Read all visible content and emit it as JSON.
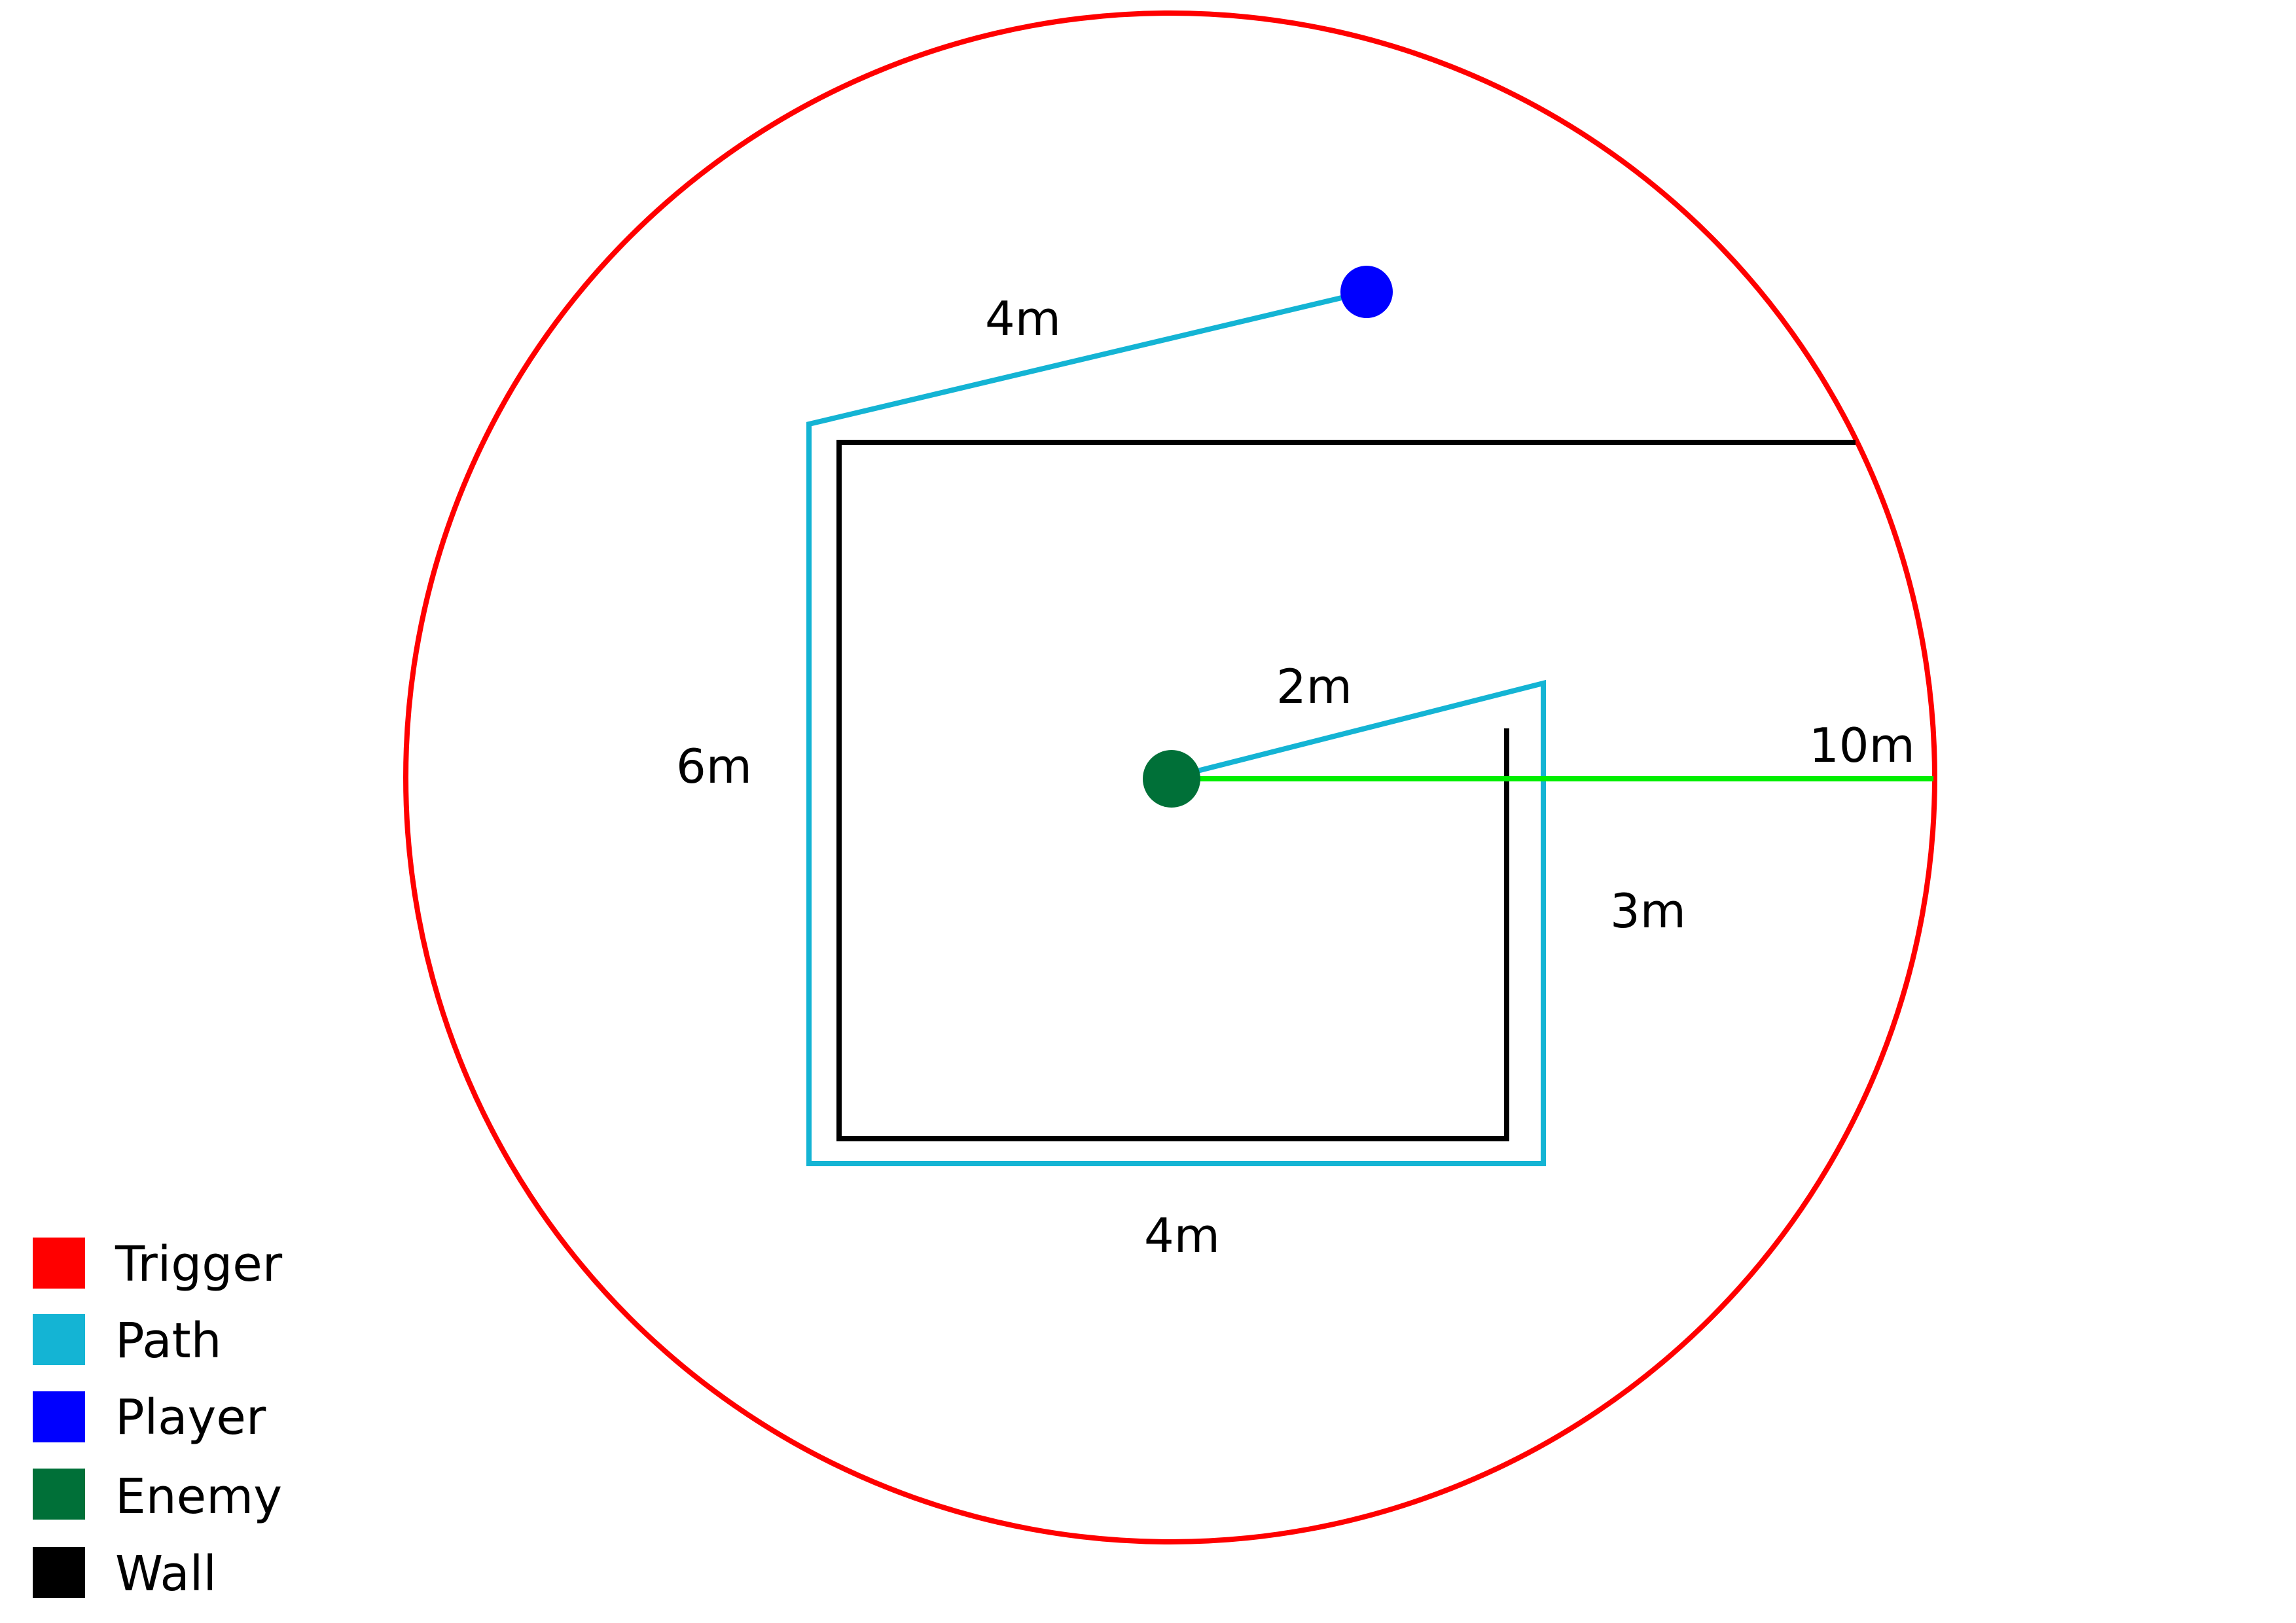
{
  "colors": {
    "trigger": "#ff0000",
    "path": "#14b4d4",
    "player": "#0000ff",
    "enemy": "#007038",
    "wall": "#000000",
    "sight": "#00ee00"
  },
  "labels": {
    "player_path_length": "4m",
    "left_side_length": "6m",
    "bottom_side_length": "4m",
    "right_side_length": "3m",
    "enemy_path_length": "2m",
    "trigger_radius": "10m"
  },
  "legend": [
    {
      "label": "Trigger",
      "color": "#ff0000"
    },
    {
      "label": "Path",
      "color": "#14b4d4"
    },
    {
      "label": "Player",
      "color": "#0000ff"
    },
    {
      "label": "Enemy",
      "color": "#007038"
    },
    {
      "label": "Wall",
      "color": "#000000"
    }
  ]
}
